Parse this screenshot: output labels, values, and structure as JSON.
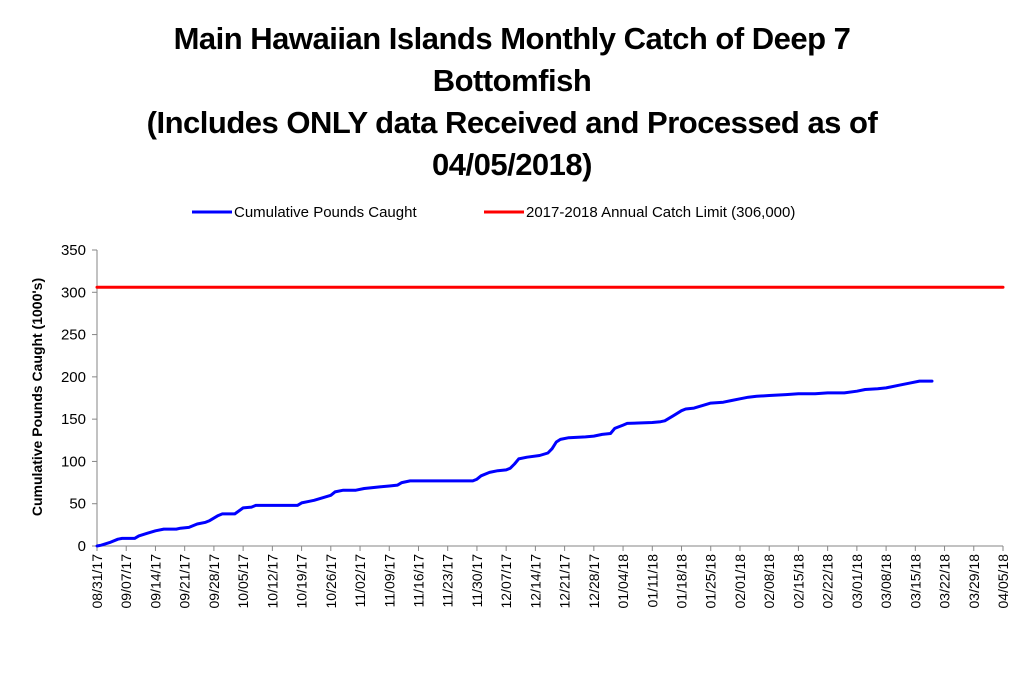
{
  "chart_data": {
    "type": "line",
    "title_lines": [
      "Main Hawaiian Islands Monthly Catch of Deep 7",
      "Bottomfish",
      "(Includes ONLY data Received and Processed as of",
      "04/05/2018)"
    ],
    "ylabel": "Cumulative Pounds Caught (1000's)",
    "xlabel": "",
    "ylim": [
      0,
      350
    ],
    "yticks": [
      0,
      50,
      100,
      150,
      200,
      250,
      300,
      350
    ],
    "x_start": "08/31/17",
    "x_end": "04/05/18",
    "x_tick_labels": [
      "08/31/17",
      "09/07/17",
      "09/14/17",
      "09/21/17",
      "09/28/17",
      "10/05/17",
      "10/12/17",
      "10/19/17",
      "10/26/17",
      "11/02/17",
      "11/09/17",
      "11/16/17",
      "11/23/17",
      "11/30/17",
      "12/07/17",
      "12/14/17",
      "12/21/17",
      "12/28/17",
      "01/04/18",
      "01/11/18",
      "01/18/18",
      "01/25/18",
      "02/01/18",
      "02/08/18",
      "02/15/18",
      "02/22/18",
      "03/01/18",
      "03/08/18",
      "03/15/18",
      "03/22/18",
      "03/29/18",
      "04/05/18"
    ],
    "legend_position": "top",
    "grid": false,
    "series": [
      {
        "name": "Cumulative Pounds Caught",
        "color": "#0000ff",
        "points": [
          [
            "08/31/17",
            0
          ],
          [
            "09/01/17",
            1
          ],
          [
            "09/03/17",
            4
          ],
          [
            "09/05/17",
            8
          ],
          [
            "09/06/17",
            9
          ],
          [
            "09/09/17",
            9
          ],
          [
            "09/10/17",
            12
          ],
          [
            "09/12/17",
            15
          ],
          [
            "09/14/17",
            18
          ],
          [
            "09/16/17",
            20
          ],
          [
            "09/19/17",
            20
          ],
          [
            "09/20/17",
            21
          ],
          [
            "09/22/17",
            22
          ],
          [
            "09/24/17",
            26
          ],
          [
            "09/26/17",
            28
          ],
          [
            "09/27/17",
            30
          ],
          [
            "09/29/17",
            36
          ],
          [
            "09/30/17",
            38
          ],
          [
            "10/03/17",
            38
          ],
          [
            "10/05/17",
            45
          ],
          [
            "10/07/17",
            46
          ],
          [
            "10/08/17",
            48
          ],
          [
            "10/18/17",
            48
          ],
          [
            "10/19/17",
            51
          ],
          [
            "10/21/17",
            53
          ],
          [
            "10/22/17",
            54
          ],
          [
            "10/24/17",
            57
          ],
          [
            "10/26/17",
            60
          ],
          [
            "10/27/17",
            64
          ],
          [
            "10/29/17",
            66
          ],
          [
            "11/01/17",
            66
          ],
          [
            "11/03/17",
            68
          ],
          [
            "11/05/17",
            69
          ],
          [
            "11/07/17",
            70
          ],
          [
            "11/09/17",
            71
          ],
          [
            "11/11/17",
            72
          ],
          [
            "11/12/17",
            75
          ],
          [
            "11/14/17",
            77
          ],
          [
            "11/29/17",
            77
          ],
          [
            "11/30/17",
            79
          ],
          [
            "12/01/17",
            83
          ],
          [
            "12/03/17",
            87
          ],
          [
            "12/05/17",
            89
          ],
          [
            "12/07/17",
            90
          ],
          [
            "12/08/17",
            92
          ],
          [
            "12/09/17",
            97
          ],
          [
            "12/10/17",
            103
          ],
          [
            "12/12/17",
            105
          ],
          [
            "12/15/17",
            107
          ],
          [
            "12/17/17",
            110
          ],
          [
            "12/18/17",
            115
          ],
          [
            "12/19/17",
            123
          ],
          [
            "12/20/17",
            126
          ],
          [
            "12/22/17",
            128
          ],
          [
            "12/26/17",
            129
          ],
          [
            "12/28/17",
            130
          ],
          [
            "12/30/17",
            132
          ],
          [
            "01/01/18",
            133
          ],
          [
            "01/02/18",
            139
          ],
          [
            "01/04/18",
            143
          ],
          [
            "01/05/18",
            145
          ],
          [
            "01/11/18",
            146
          ],
          [
            "01/13/18",
            147
          ],
          [
            "01/14/18",
            148
          ],
          [
            "01/16/18",
            154
          ],
          [
            "01/18/18",
            160
          ],
          [
            "01/19/18",
            162
          ],
          [
            "01/21/18",
            163
          ],
          [
            "01/23/18",
            166
          ],
          [
            "01/25/18",
            169
          ],
          [
            "01/28/18",
            170
          ],
          [
            "01/30/18",
            172
          ],
          [
            "02/01/18",
            174
          ],
          [
            "02/03/18",
            176
          ],
          [
            "02/05/18",
            177
          ],
          [
            "02/08/18",
            178
          ],
          [
            "02/12/18",
            179
          ],
          [
            "02/15/18",
            180
          ],
          [
            "02/19/18",
            180
          ],
          [
            "02/22/18",
            181
          ],
          [
            "02/26/18",
            181
          ],
          [
            "03/01/18",
            183
          ],
          [
            "03/03/18",
            185
          ],
          [
            "03/06/18",
            186
          ],
          [
            "03/08/18",
            187
          ],
          [
            "03/11/18",
            190
          ],
          [
            "03/14/18",
            193
          ],
          [
            "03/16/18",
            195
          ],
          [
            "03/19/18",
            195
          ]
        ]
      },
      {
        "name": "2017-2018 Annual Catch Limit (306,000)",
        "color": "#ff0000",
        "points": [
          [
            "08/31/17",
            306
          ],
          [
            "04/05/18",
            306
          ]
        ]
      }
    ]
  }
}
